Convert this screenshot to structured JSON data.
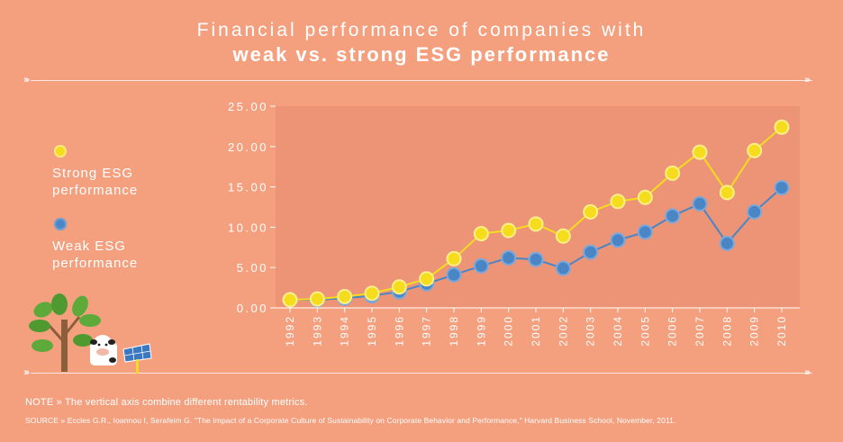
{
  "header": {
    "title_line1": "Financial performance of companies with",
    "title_line2": "weak vs. strong ESG performance"
  },
  "legend": {
    "strong_label": "Strong ESG performance",
    "weak_label": "Weak ESG performance"
  },
  "footer": {
    "note": "NOTE » The vertical axis combine different rentability metrics.",
    "source": "SOURCE » Eccles G.R., Ioannou I, Serafeim G. \"The Impact of a Corporate Culture of Sustainability on Corporate Behavior and Performance,\" Harvard Business School, November, 2011."
  },
  "colors": {
    "background": "#F4A07F",
    "strong": "#F5DC1C",
    "weak": "#4A86C5",
    "plot_area": "#EE9476",
    "text": "#FFFFFF"
  },
  "chart_data": {
    "type": "line",
    "title": "",
    "xlabel": "",
    "ylabel": "",
    "ylim": [
      0,
      25
    ],
    "ytick_labels": [
      "0.00",
      "5.00",
      "10.00",
      "15.00",
      "20.00",
      "25.00"
    ],
    "yticks": [
      0,
      5,
      10,
      15,
      20,
      25
    ],
    "categories": [
      "1992",
      "1993",
      "1994",
      "1995",
      "1996",
      "1997",
      "1998",
      "1999",
      "2000",
      "2001",
      "2002",
      "2003",
      "2004",
      "2005",
      "2006",
      "2007",
      "2008",
      "2009",
      "2010"
    ],
    "series": [
      {
        "name": "Strong ESG performance",
        "color": "#F5DC1C",
        "values": [
          1.0,
          1.1,
          1.4,
          1.8,
          2.6,
          3.6,
          6.1,
          9.2,
          9.6,
          10.4,
          8.9,
          11.9,
          13.2,
          13.7,
          16.7,
          19.3,
          14.3,
          19.5,
          22.4
        ]
      },
      {
        "name": "Weak ESG performance",
        "color": "#4A86C5",
        "values": [
          1.0,
          1.0,
          1.2,
          1.5,
          2.0,
          3.0,
          4.1,
          5.2,
          6.2,
          6.0,
          4.9,
          6.9,
          8.4,
          9.4,
          11.4,
          12.9,
          8.0,
          11.9,
          14.9
        ]
      }
    ],
    "grid": false,
    "legend_position": "left"
  }
}
